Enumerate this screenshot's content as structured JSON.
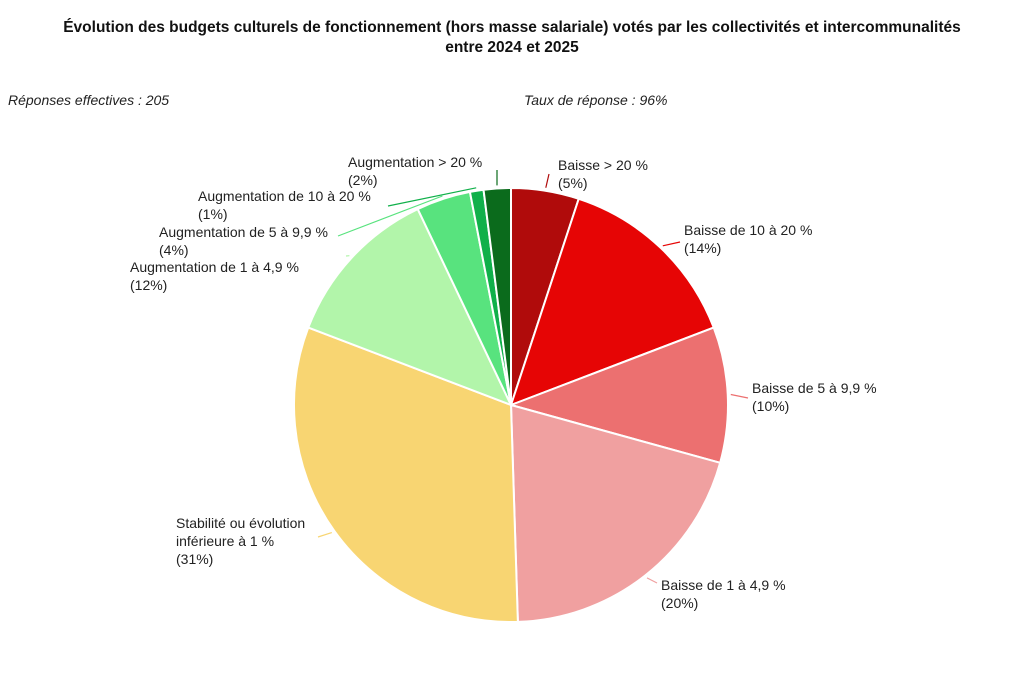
{
  "chart_data": {
    "type": "pie",
    "title_lines": [
      "Évolution des budgets culturels de fonctionnement (hors masse salariale) votés par les collectivités et intercommunalités",
      "entre 2024 et 2025"
    ],
    "notes": {
      "responses": "Réponses effectives : 205",
      "rate": "Taux de réponse : 96%"
    },
    "slices": [
      {
        "label_lines": [
          "Baisse > 20 %"
        ],
        "pct_label": "(5%)",
        "value": 5,
        "color": "#b00b0b"
      },
      {
        "label_lines": [
          "Baisse de 10 à 20 %"
        ],
        "pct_label": "(14%)",
        "value": 14,
        "color": "#e60505"
      },
      {
        "label_lines": [
          "Baisse de 5 à 9,9 %"
        ],
        "pct_label": "(10%)",
        "value": 10,
        "color": "#ec7070"
      },
      {
        "label_lines": [
          "Baisse de 1 à 4,9 %"
        ],
        "pct_label": "(20%)",
        "value": 20,
        "color": "#f0a0a0"
      },
      {
        "label_lines": [
          "Stabilité ou évolution",
          "inférieure à 1 %"
        ],
        "pct_label": "(31%)",
        "value": 31,
        "color": "#f8d572"
      },
      {
        "label_lines": [
          "Augmentation de 1 à 4,9 %"
        ],
        "pct_label": "(12%)",
        "value": 12,
        "color": "#b2f5aa"
      },
      {
        "label_lines": [
          "Augmentation de 5 à 9,9 %"
        ],
        "pct_label": "(4%)",
        "value": 4,
        "color": "#58e37e"
      },
      {
        "label_lines": [
          "Augmentation de 10 à 20 %"
        ],
        "pct_label": "(1%)",
        "value": 1,
        "color": "#10b04a"
      },
      {
        "label_lines": [
          "Augmentation > 20 %"
        ],
        "pct_label": "(2%)",
        "value": 2,
        "color": "#0b6b1c"
      }
    ]
  }
}
